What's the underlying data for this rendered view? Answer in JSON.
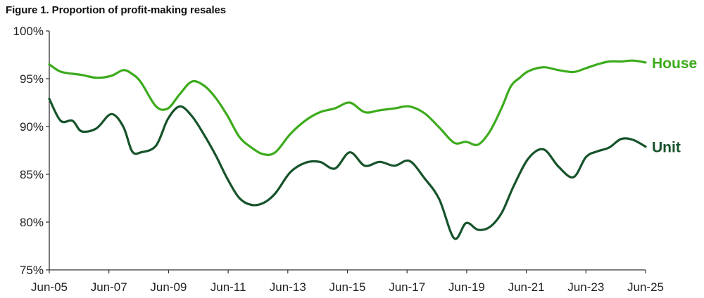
{
  "title": "Figure 1. Proportion of profit-making resales",
  "colors": {
    "house": "#3cab1c",
    "unit": "#16532a",
    "axis": "#333333"
  },
  "chart_data": {
    "type": "line",
    "title": "Figure 1. Proportion of profit-making resales",
    "xlabel": "",
    "ylabel": "",
    "ylim": [
      75,
      100
    ],
    "xlim": [
      2005.42,
      2025.42
    ],
    "y_ticks": [
      "75%",
      "80%",
      "85%",
      "90%",
      "95%",
      "100%"
    ],
    "y_tick_values": [
      75,
      80,
      85,
      90,
      95,
      100
    ],
    "x_ticks": [
      "Jun-05",
      "Jun-07",
      "Jun-09",
      "Jun-11",
      "Jun-13",
      "Jun-15",
      "Jun-17",
      "Jun-19",
      "Jun-21",
      "Jun-23",
      "Jun-25"
    ],
    "x_tick_values": [
      2005.42,
      2007.42,
      2009.42,
      2011.42,
      2013.42,
      2015.42,
      2017.42,
      2019.42,
      2021.42,
      2023.42,
      2025.42
    ],
    "grid": false,
    "legend": "direct labels at right end of lines",
    "series": [
      {
        "name": "House",
        "color": "#3cab1c",
        "x": [
          2005.42,
          2005.75,
          2006.0,
          2006.5,
          2007.0,
          2007.5,
          2007.9,
          2008.2,
          2008.5,
          2009.0,
          2009.4,
          2009.8,
          2010.2,
          2010.6,
          2011.0,
          2011.4,
          2011.8,
          2012.2,
          2012.6,
          2013.0,
          2013.5,
          2014.0,
          2014.5,
          2015.0,
          2015.5,
          2016.0,
          2016.5,
          2017.0,
          2017.5,
          2018.0,
          2018.5,
          2019.0,
          2019.4,
          2019.8,
          2020.2,
          2020.6,
          2020.9,
          2021.2,
          2021.5,
          2022.0,
          2022.5,
          2023.0,
          2023.42,
          2023.8,
          2024.2,
          2024.6,
          2025.0,
          2025.42
        ],
        "y": [
          96.5,
          95.8,
          95.6,
          95.4,
          95.1,
          95.3,
          95.9,
          95.5,
          94.6,
          92.1,
          91.9,
          93.4,
          94.7,
          94.3,
          93.0,
          91.1,
          88.9,
          87.8,
          87.1,
          87.3,
          89.2,
          90.6,
          91.5,
          91.9,
          92.5,
          91.5,
          91.7,
          91.9,
          92.1,
          91.4,
          89.9,
          88.3,
          88.4,
          88.1,
          89.5,
          92.0,
          94.2,
          95.1,
          95.8,
          96.2,
          95.9,
          95.7,
          96.1,
          96.5,
          96.8,
          96.8,
          96.9,
          96.7
        ]
      },
      {
        "name": "Unit",
        "color": "#16532a",
        "x": [
          2005.42,
          2005.8,
          2006.2,
          2006.5,
          2007.0,
          2007.5,
          2007.9,
          2008.2,
          2008.5,
          2009.0,
          2009.4,
          2009.8,
          2010.2,
          2010.6,
          2011.0,
          2011.4,
          2011.8,
          2012.2,
          2012.6,
          2013.0,
          2013.5,
          2014.0,
          2014.5,
          2015.0,
          2015.5,
          2016.0,
          2016.5,
          2017.0,
          2017.5,
          2018.0,
          2018.5,
          2019.0,
          2019.4,
          2019.8,
          2020.2,
          2020.6,
          2021.0,
          2021.5,
          2022.0,
          2022.5,
          2023.0,
          2023.42,
          2023.8,
          2024.2,
          2024.6,
          2025.0,
          2025.42
        ],
        "y": [
          92.9,
          90.6,
          90.6,
          89.5,
          89.8,
          91.3,
          90.0,
          87.4,
          87.3,
          88.0,
          90.8,
          92.1,
          91.1,
          89.2,
          87.0,
          84.5,
          82.5,
          81.8,
          82.0,
          83.0,
          85.2,
          86.2,
          86.3,
          85.6,
          87.3,
          85.9,
          86.3,
          85.9,
          86.4,
          84.6,
          82.4,
          78.3,
          79.9,
          79.2,
          79.5,
          81.0,
          83.8,
          86.7,
          87.6,
          85.8,
          84.7,
          86.8,
          87.4,
          87.8,
          88.7,
          88.6,
          87.9
        ]
      }
    ]
  }
}
